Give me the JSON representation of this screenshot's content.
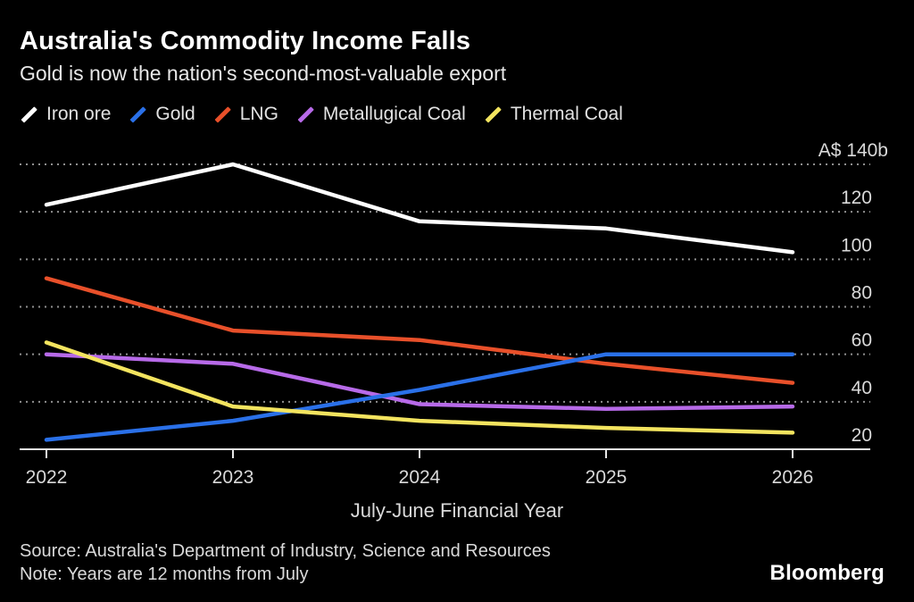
{
  "header": {
    "title": "Australia's Commodity Income Falls",
    "subtitle": "Gold is now the nation's second-most-valuable export"
  },
  "chart_data": {
    "type": "line",
    "x": [
      2022,
      2023,
      2024,
      2025,
      2026
    ],
    "x_tick_labels": [
      "2022",
      "2023",
      "2024",
      "2025",
      "2026"
    ],
    "series": [
      {
        "name": "Iron ore",
        "color": "#ffffff",
        "values": [
          123,
          140,
          116,
          113,
          103
        ]
      },
      {
        "name": "Gold",
        "color": "#2a70e8",
        "values": [
          24,
          32,
          45,
          60,
          60
        ]
      },
      {
        "name": "LNG",
        "color": "#e8502a",
        "values": [
          92,
          70,
          66,
          56,
          48
        ]
      },
      {
        "name": "Metallugical Coal",
        "color": "#b76ae8",
        "values": [
          60,
          56,
          39,
          37,
          38
        ]
      },
      {
        "name": "Thermal Coal",
        "color": "#f3e45f",
        "values": [
          65,
          38,
          32,
          29,
          27
        ]
      }
    ],
    "units": "A$ billions",
    "ylim": [
      20,
      140
    ],
    "y_ticks": [
      140,
      120,
      100,
      80,
      60,
      40,
      20
    ],
    "y_tick_labels": [
      "A$ 140b",
      "120",
      "100",
      "80",
      "60",
      "40",
      "20"
    ],
    "xlabel": "July-June Financial Year",
    "grid": "horizontal dashed",
    "legend_position": "top"
  },
  "footer": {
    "source": "Source: Australia's Department of Industry, Science and Resources",
    "note": "Note: Years are 12 months from July",
    "brand": "Bloomberg"
  },
  "colors": {
    "background": "#000000",
    "text_primary": "#ffffff",
    "text_secondary": "#d9d9d9",
    "gridline": "#8f8f8f",
    "axis_line": "#e8e8e8"
  }
}
